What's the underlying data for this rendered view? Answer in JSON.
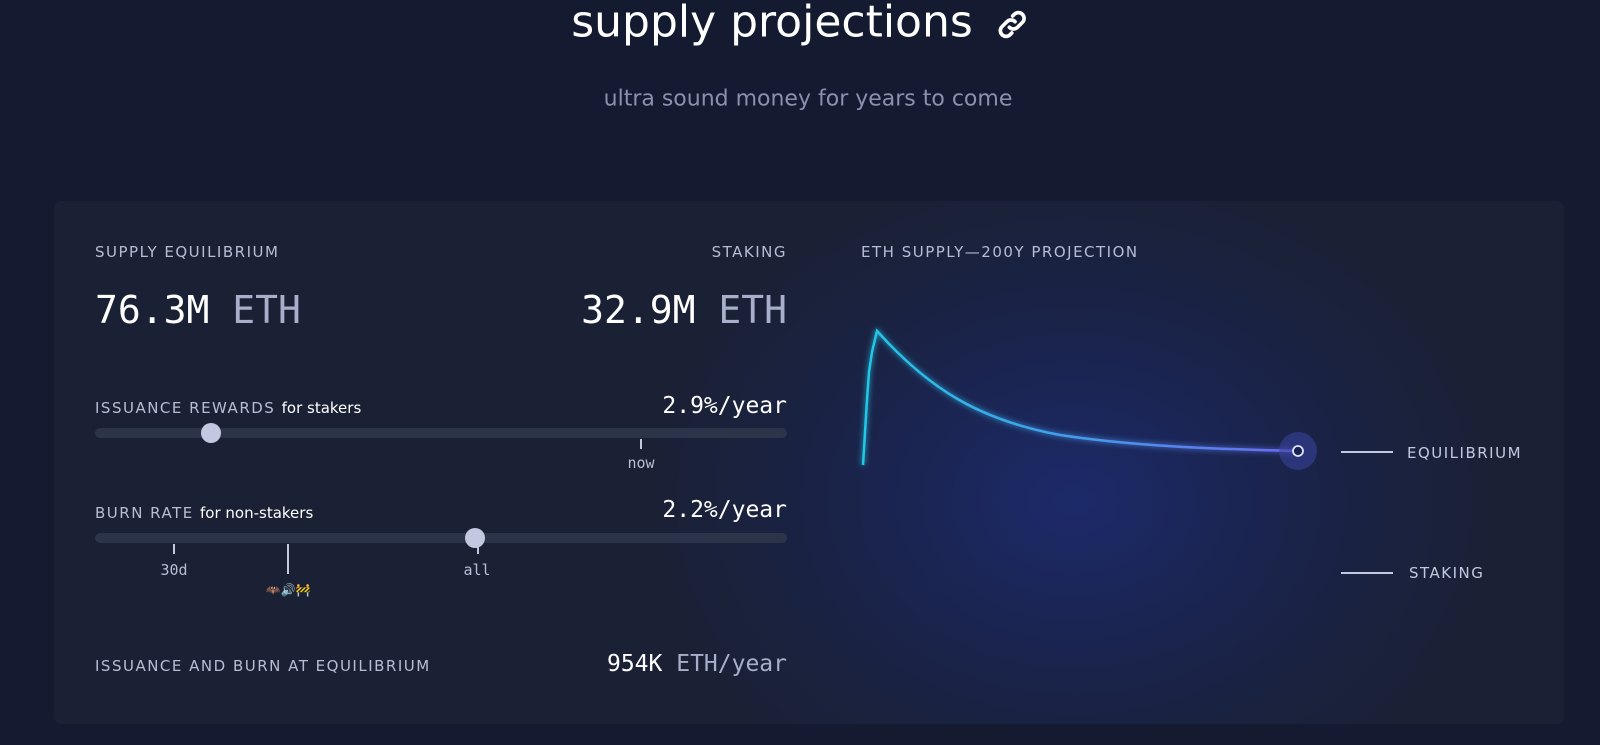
{
  "header": {
    "title": "supply projections",
    "subtitle": "ultra sound money for years to come"
  },
  "summary": {
    "supply_equilibrium": {
      "label": "SUPPLY EQUILIBRIUM",
      "value": "76.3M",
      "unit": "ETH"
    },
    "staking": {
      "label": "STAKING",
      "value": "32.9M",
      "unit": "ETH"
    }
  },
  "issuance": {
    "label": "ISSUANCE REWARDS",
    "note": "for stakers",
    "rate": "2.9%/year",
    "ticks": [
      "now"
    ]
  },
  "burn": {
    "label": "BURN RATE",
    "note": "for non-stakers",
    "rate": "2.2%/year",
    "ticks": [
      "30d",
      "🦇🔊🚧",
      "all"
    ]
  },
  "equilibrium_flow": {
    "label": "ISSUANCE AND BURN AT EQUILIBRIUM",
    "value": "954K",
    "unit": "ETH/year"
  },
  "projection": {
    "title": "ETH SUPPLY—200Y PROJECTION",
    "legend": [
      "EQUILIBRIUM",
      "STAKING"
    ]
  }
}
